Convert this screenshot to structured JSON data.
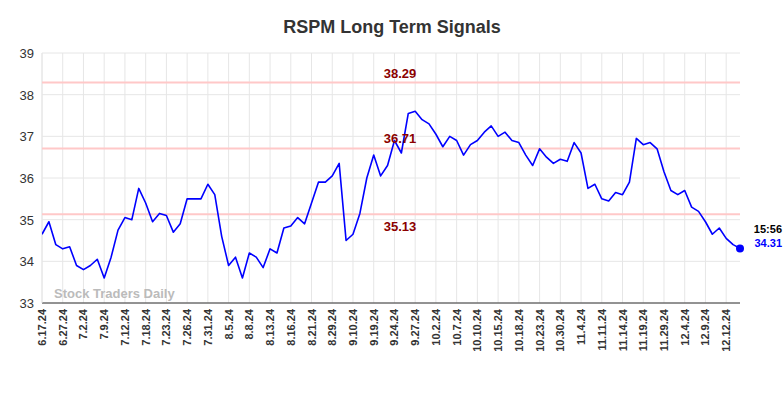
{
  "chart_data": {
    "type": "line",
    "title": "RSPM Long Term Signals",
    "categories": [
      "6.17.24",
      null,
      null,
      "6.27.24",
      null,
      null,
      "7.2.24",
      null,
      null,
      "7.9.24",
      null,
      null,
      "7.12.24",
      null,
      null,
      "7.18.24",
      null,
      null,
      "7.23.24",
      null,
      null,
      "7.26.24",
      null,
      null,
      "7.31.24",
      null,
      null,
      "8.5.24",
      null,
      null,
      "8.8.24",
      null,
      null,
      "8.13.24",
      null,
      null,
      "8.16.24",
      null,
      null,
      "8.21.24",
      null,
      null,
      "8.29.24",
      null,
      null,
      "9.10.24",
      null,
      null,
      "9.19.24",
      null,
      null,
      "9.24.24",
      null,
      null,
      "9.27.24",
      null,
      null,
      "10.2.24",
      null,
      null,
      "10.7.24",
      null,
      null,
      "10.10.24",
      null,
      null,
      "10.15.24",
      null,
      null,
      "10.18.24",
      null,
      null,
      "10.23.24",
      null,
      null,
      "10.30.24",
      null,
      null,
      "11.4.24",
      null,
      null,
      "11.11.24",
      null,
      null,
      "11.14.24",
      null,
      null,
      "11.19.24",
      null,
      null,
      "11.29.24",
      null,
      null,
      "12.4.24",
      null,
      null,
      "12.9.24",
      null,
      null,
      "12.12.24",
      null,
      null
    ],
    "series": [
      {
        "name": "RSPM",
        "color": "#0000ff",
        "values": [
          34.65,
          34.95,
          34.4,
          34.3,
          34.35,
          33.9,
          33.8,
          33.9,
          34.05,
          33.6,
          34.1,
          34.75,
          35.05,
          35.0,
          35.75,
          35.4,
          34.95,
          35.15,
          35.1,
          34.7,
          34.9,
          35.5,
          35.5,
          35.5,
          35.85,
          35.6,
          34.6,
          33.9,
          34.1,
          33.6,
          34.2,
          34.1,
          33.85,
          34.3,
          34.2,
          34.8,
          34.85,
          35.05,
          34.9,
          35.4,
          35.9,
          35.9,
          36.05,
          36.35,
          34.5,
          34.65,
          35.15,
          36.0,
          36.55,
          36.05,
          36.3,
          36.9,
          36.6,
          37.55,
          37.6,
          37.4,
          37.3,
          37.05,
          36.75,
          37.0,
          36.9,
          36.55,
          36.8,
          36.9,
          37.1,
          37.25,
          37.0,
          37.1,
          36.9,
          36.85,
          36.55,
          36.3,
          36.7,
          36.5,
          36.35,
          36.45,
          36.4,
          36.85,
          36.6,
          35.75,
          35.85,
          35.5,
          35.45,
          35.65,
          35.6,
          35.9,
          36.95,
          36.8,
          36.85,
          36.7,
          36.15,
          35.7,
          35.6,
          35.7,
          35.3,
          35.2,
          34.95,
          34.65,
          34.8,
          34.55,
          34.4,
          34.31
        ]
      }
    ],
    "hlines": [
      38.29,
      36.71,
      35.13
    ],
    "end_label": "15:56",
    "watermark": "Stock Traders Daily",
    "ylim": [
      33,
      39
    ],
    "yticks": [
      33,
      34,
      35,
      36,
      37,
      38,
      39
    ],
    "grid": true
  }
}
